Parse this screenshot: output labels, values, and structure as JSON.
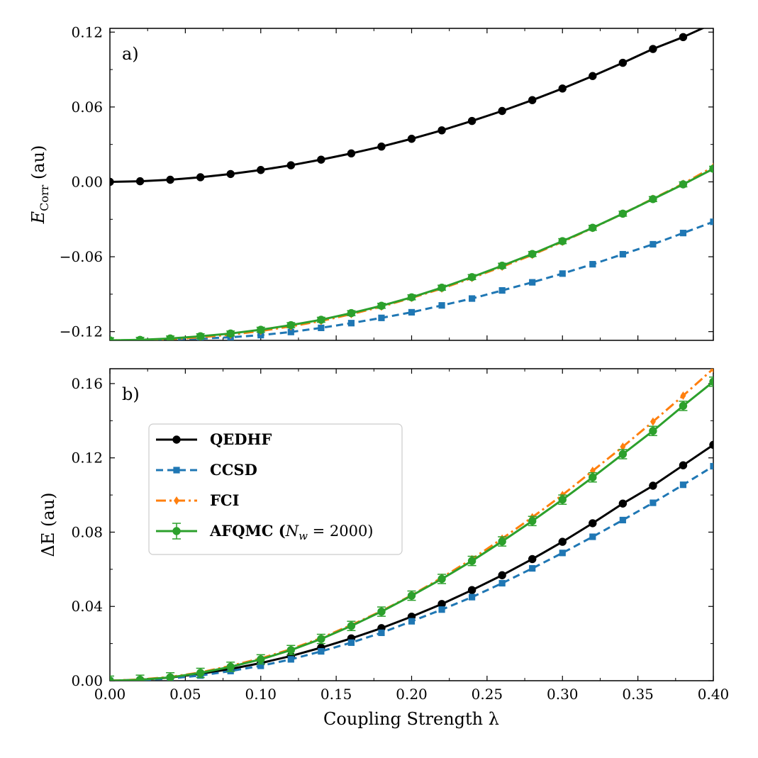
{
  "figure": {
    "xlabel": "Coupling Strength λ",
    "x_tick_labels": [
      "0.00",
      "0.05",
      "0.10",
      "0.15",
      "0.20",
      "0.25",
      "0.30",
      "0.35",
      "0.40"
    ]
  },
  "series_styles": [
    {
      "key": "QEDHF",
      "color": "#000000",
      "marker": "circle",
      "dash": ""
    },
    {
      "key": "CCSD",
      "color": "#1f77b4",
      "marker": "square",
      "dash": "10,6"
    },
    {
      "key": "FCI",
      "color": "#ff7f0e",
      "marker": "diamond",
      "dash": "14,5,3,5"
    },
    {
      "key": "AFQMC",
      "color": "#2ca02c",
      "marker": "circle",
      "dash": "",
      "errorbars": true
    }
  ],
  "legend": {
    "placement": "upper-left",
    "entries": [
      {
        "key": "QEDHF",
        "label": "QEDHF"
      },
      {
        "key": "CCSD",
        "label": "CCSD"
      },
      {
        "key": "FCI",
        "label": "FCI"
      },
      {
        "key": "AFQMC",
        "label": "AFQMC (N_w = 2000)",
        "label_main": "AFQMC (",
        "label_sym": "N",
        "label_sub": "w",
        "label_rest": " = 2000)"
      }
    ]
  },
  "chart_data": [
    {
      "type": "line",
      "panel_label": "a)",
      "ylabel": "E_Corr (au)",
      "ylabel_main": "E",
      "ylabel_sub": "Corr",
      "ylabel_rest": " (au)",
      "xlim": [
        0.0,
        0.4
      ],
      "ylim": [
        -0.127,
        0.123
      ],
      "y_ticks": [
        -0.12,
        -0.06,
        0.0,
        0.06,
        0.12
      ],
      "y_tick_labels": [
        "−0.12",
        "−0.06",
        "0.00",
        "0.06",
        "0.12"
      ],
      "x": [
        0.0,
        0.02,
        0.04,
        0.06,
        0.08,
        0.1,
        0.12,
        0.14,
        0.16,
        0.18,
        0.2,
        0.22,
        0.24,
        0.26,
        0.28,
        0.3,
        0.32,
        0.34,
        0.36,
        0.38,
        0.4
      ],
      "series": [
        {
          "key": "QEDHF",
          "values": [
            0.0,
            0.0005,
            0.0017,
            0.0037,
            0.0063,
            0.0095,
            0.0133,
            0.0178,
            0.0228,
            0.0283,
            0.0345,
            0.0413,
            0.0488,
            0.0568,
            0.0655,
            0.0748,
            0.0848,
            0.0954,
            0.1065,
            0.116,
            0.127
          ]
        },
        {
          "key": "CCSD",
          "values": [
            -0.127,
            -0.1268,
            -0.1263,
            -0.1256,
            -0.1245,
            -0.1228,
            -0.1203,
            -0.117,
            -0.1132,
            -0.109,
            -0.1045,
            -0.099,
            -0.0935,
            -0.087,
            -0.0805,
            -0.0735,
            -0.066,
            -0.058,
            -0.05,
            -0.041,
            -0.032
          ]
        },
        {
          "key": "FCI",
          "values": [
            -0.127,
            -0.1268,
            -0.126,
            -0.1245,
            -0.1225,
            -0.1195,
            -0.1158,
            -0.1115,
            -0.106,
            -0.1,
            -0.093,
            -0.0855,
            -0.077,
            -0.068,
            -0.0585,
            -0.048,
            -0.037,
            -0.0255,
            -0.0135,
            -0.0015,
            0.012
          ]
        },
        {
          "key": "AFQMC",
          "values": [
            -0.127,
            -0.1266,
            -0.1255,
            -0.1237,
            -0.1215,
            -0.1185,
            -0.1148,
            -0.1105,
            -0.1052,
            -0.0993,
            -0.0925,
            -0.0848,
            -0.0763,
            -0.0672,
            -0.0578,
            -0.0475,
            -0.0368,
            -0.0255,
            -0.0138,
            -0.002,
            0.0105
          ],
          "error": 0.002
        }
      ]
    },
    {
      "type": "line",
      "panel_label": "b)",
      "ylabel": "ΔE (au)",
      "xlim": [
        0.0,
        0.4
      ],
      "ylim": [
        0.0,
        0.168
      ],
      "y_ticks": [
        0.0,
        0.04,
        0.08,
        0.12,
        0.16
      ],
      "y_tick_labels": [
        "0.00",
        "0.04",
        "0.08",
        "0.12",
        "0.16"
      ],
      "x": [
        0.0,
        0.02,
        0.04,
        0.06,
        0.08,
        0.1,
        0.12,
        0.14,
        0.16,
        0.18,
        0.2,
        0.22,
        0.24,
        0.26,
        0.28,
        0.3,
        0.32,
        0.34,
        0.36,
        0.38,
        0.4
      ],
      "series": [
        {
          "key": "QEDHF",
          "values": [
            0.0,
            0.0005,
            0.0017,
            0.0037,
            0.0063,
            0.0095,
            0.0133,
            0.0178,
            0.0228,
            0.0283,
            0.0345,
            0.0413,
            0.0488,
            0.0568,
            0.0655,
            0.0748,
            0.0848,
            0.0954,
            0.105,
            0.116,
            0.127
          ]
        },
        {
          "key": "CCSD",
          "values": [
            0.0,
            0.0003,
            0.0012,
            0.0028,
            0.0052,
            0.008,
            0.0115,
            0.0158,
            0.0205,
            0.0258,
            0.032,
            0.0383,
            0.045,
            0.0525,
            0.0605,
            0.0688,
            0.0775,
            0.0865,
            0.0958,
            0.1055,
            0.1155
          ]
        },
        {
          "key": "FCI",
          "values": [
            0.0,
            0.0007,
            0.002,
            0.0045,
            0.008,
            0.012,
            0.017,
            0.023,
            0.03,
            0.0375,
            0.046,
            0.0555,
            0.0655,
            0.0765,
            0.088,
            0.1,
            0.113,
            0.126,
            0.1395,
            0.1535,
            0.168
          ]
        },
        {
          "key": "AFQMC",
          "values": [
            0.0,
            0.0005,
            0.0018,
            0.0042,
            0.0075,
            0.0115,
            0.0165,
            0.0225,
            0.0295,
            0.0372,
            0.0458,
            0.0548,
            0.0645,
            0.075,
            0.086,
            0.0975,
            0.1095,
            0.122,
            0.1345,
            0.148,
            0.161
          ],
          "error": 0.0025
        }
      ]
    }
  ]
}
